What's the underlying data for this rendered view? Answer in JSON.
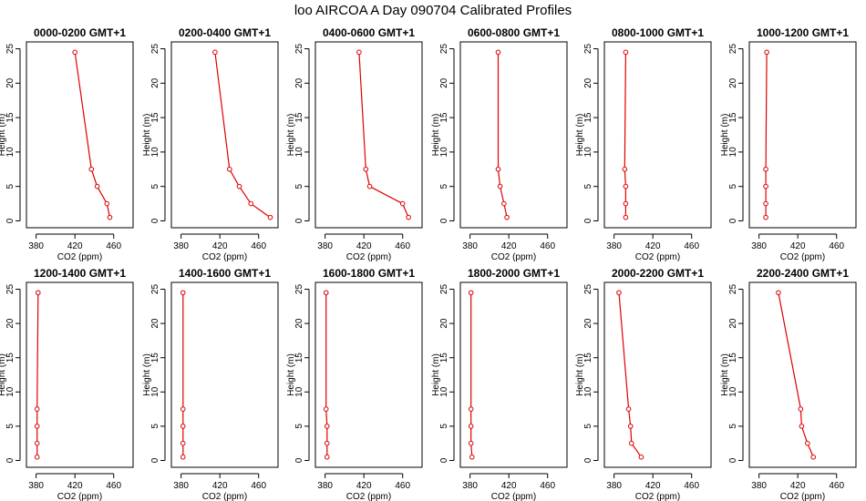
{
  "figure_title": "loo AIRCOA A  Day 090704  Calibrated Profiles",
  "colors": {
    "series": "#dd0000",
    "axes": "#000000",
    "background": "#ffffff"
  },
  "chart_data": [
    {
      "type": "line",
      "title": "0000-0200 GMT+1",
      "xlabel": "CO2 (ppm)",
      "ylabel": "Height (m)",
      "xlim": [
        370,
        480
      ],
      "ylim": [
        -1,
        26
      ],
      "xticks": [
        380,
        420,
        460
      ],
      "yticks": [
        0,
        5,
        10,
        15,
        20,
        25
      ],
      "series": [
        {
          "x": [
            456,
            453,
            443,
            437,
            420
          ],
          "y": [
            0.5,
            2.5,
            5,
            7.5,
            24.5
          ]
        }
      ]
    },
    {
      "type": "line",
      "title": "0200-0400 GMT+1",
      "xlabel": "CO2 (ppm)",
      "ylabel": "Height (m)",
      "xlim": [
        370,
        480
      ],
      "ylim": [
        -1,
        26
      ],
      "xticks": [
        380,
        420,
        460
      ],
      "yticks": [
        0,
        5,
        10,
        15,
        20,
        25
      ],
      "series": [
        {
          "x": [
            472,
            452,
            440,
            430,
            415
          ],
          "y": [
            0.5,
            2.5,
            5,
            7.5,
            24.5
          ]
        }
      ]
    },
    {
      "type": "line",
      "title": "0400-0600 GMT+1",
      "xlabel": "CO2 (ppm)",
      "ylabel": "Height (m)",
      "xlim": [
        370,
        480
      ],
      "ylim": [
        -1,
        26
      ],
      "xticks": [
        380,
        420,
        460
      ],
      "yticks": [
        0,
        5,
        10,
        15,
        20,
        25
      ],
      "series": [
        {
          "x": [
            466,
            460,
            426,
            422,
            415
          ],
          "y": [
            0.5,
            2.5,
            5,
            7.5,
            24.5
          ]
        }
      ]
    },
    {
      "type": "line",
      "title": "0600-0800 GMT+1",
      "xlabel": "CO2 (ppm)",
      "ylabel": "Height (m)",
      "xlim": [
        370,
        480
      ],
      "ylim": [
        -1,
        26
      ],
      "xticks": [
        380,
        420,
        460
      ],
      "yticks": [
        0,
        5,
        10,
        15,
        20,
        25
      ],
      "series": [
        {
          "x": [
            418,
            415,
            411,
            409,
            409
          ],
          "y": [
            0.5,
            2.5,
            5,
            7.5,
            24.5
          ]
        }
      ]
    },
    {
      "type": "line",
      "title": "0800-1000 GMT+1",
      "xlabel": "CO2 (ppm)",
      "ylabel": "Height (m)",
      "xlim": [
        370,
        480
      ],
      "ylim": [
        -1,
        26
      ],
      "xticks": [
        380,
        420,
        460
      ],
      "yticks": [
        0,
        5,
        10,
        15,
        20,
        25
      ],
      "series": [
        {
          "x": [
            392,
            392,
            392,
            391,
            392
          ],
          "y": [
            0.5,
            2.5,
            5,
            7.5,
            24.5
          ]
        }
      ]
    },
    {
      "type": "line",
      "title": "1000-1200 GMT+1",
      "xlabel": "CO2 (ppm)",
      "ylabel": "Height (m)",
      "xlim": [
        370,
        480
      ],
      "ylim": [
        -1,
        26
      ],
      "xticks": [
        380,
        420,
        460
      ],
      "yticks": [
        0,
        5,
        10,
        15,
        20,
        25
      ],
      "series": [
        {
          "x": [
            387,
            387,
            387,
            387,
            388
          ],
          "y": [
            0.5,
            2.5,
            5,
            7.5,
            24.5
          ]
        }
      ]
    },
    {
      "type": "line",
      "title": "1200-1400 GMT+1",
      "xlabel": "CO2 (ppm)",
      "ylabel": "Height (m)",
      "xlim": [
        370,
        480
      ],
      "ylim": [
        -1,
        26
      ],
      "xticks": [
        380,
        420,
        460
      ],
      "yticks": [
        0,
        5,
        10,
        15,
        20,
        25
      ],
      "series": [
        {
          "x": [
            381,
            381,
            381,
            381,
            382
          ],
          "y": [
            0.5,
            2.5,
            5,
            7.5,
            24.5
          ]
        }
      ]
    },
    {
      "type": "line",
      "title": "1400-1600 GMT+1",
      "xlabel": "CO2 (ppm)",
      "ylabel": "Height (m)",
      "xlim": [
        370,
        480
      ],
      "ylim": [
        -1,
        26
      ],
      "xticks": [
        380,
        420,
        460
      ],
      "yticks": [
        0,
        5,
        10,
        15,
        20,
        25
      ],
      "series": [
        {
          "x": [
            382,
            382,
            382,
            382,
            382
          ],
          "y": [
            0.5,
            2.5,
            5,
            7.5,
            24.5
          ]
        }
      ]
    },
    {
      "type": "line",
      "title": "1600-1800 GMT+1",
      "xlabel": "CO2 (ppm)",
      "ylabel": "Height (m)",
      "xlim": [
        370,
        480
      ],
      "ylim": [
        -1,
        26
      ],
      "xticks": [
        380,
        420,
        460
      ],
      "yticks": [
        0,
        5,
        10,
        15,
        20,
        25
      ],
      "series": [
        {
          "x": [
            382,
            382,
            382,
            381,
            381
          ],
          "y": [
            0.5,
            2.5,
            5,
            7.5,
            24.5
          ]
        }
      ]
    },
    {
      "type": "line",
      "title": "1800-2000 GMT+1",
      "xlabel": "CO2 (ppm)",
      "ylabel": "Height (m)",
      "xlim": [
        370,
        480
      ],
      "ylim": [
        -1,
        26
      ],
      "xticks": [
        380,
        420,
        460
      ],
      "yticks": [
        0,
        5,
        10,
        15,
        20,
        25
      ],
      "series": [
        {
          "x": [
            382,
            381,
            381,
            381,
            381
          ],
          "y": [
            0.5,
            2.5,
            5,
            7.5,
            24.5
          ]
        }
      ]
    },
    {
      "type": "line",
      "title": "2000-2200 GMT+1",
      "xlabel": "CO2 (ppm)",
      "ylabel": "Height (m)",
      "xlim": [
        370,
        480
      ],
      "ylim": [
        -1,
        26
      ],
      "xticks": [
        380,
        420,
        460
      ],
      "yticks": [
        0,
        5,
        10,
        15,
        20,
        25
      ],
      "series": [
        {
          "x": [
            408,
            398,
            397,
            395,
            385
          ],
          "y": [
            0.5,
            2.5,
            5,
            7.5,
            24.5
          ]
        }
      ]
    },
    {
      "type": "line",
      "title": "2200-2400 GMT+1",
      "xlabel": "CO2 (ppm)",
      "ylabel": "Height (m)",
      "xlim": [
        370,
        480
      ],
      "ylim": [
        -1,
        26
      ],
      "xticks": [
        380,
        420,
        460
      ],
      "yticks": [
        0,
        5,
        10,
        15,
        20,
        25
      ],
      "series": [
        {
          "x": [
            436,
            430,
            424,
            423,
            400
          ],
          "y": [
            0.5,
            2.5,
            5,
            7.5,
            24.5
          ]
        }
      ]
    }
  ]
}
